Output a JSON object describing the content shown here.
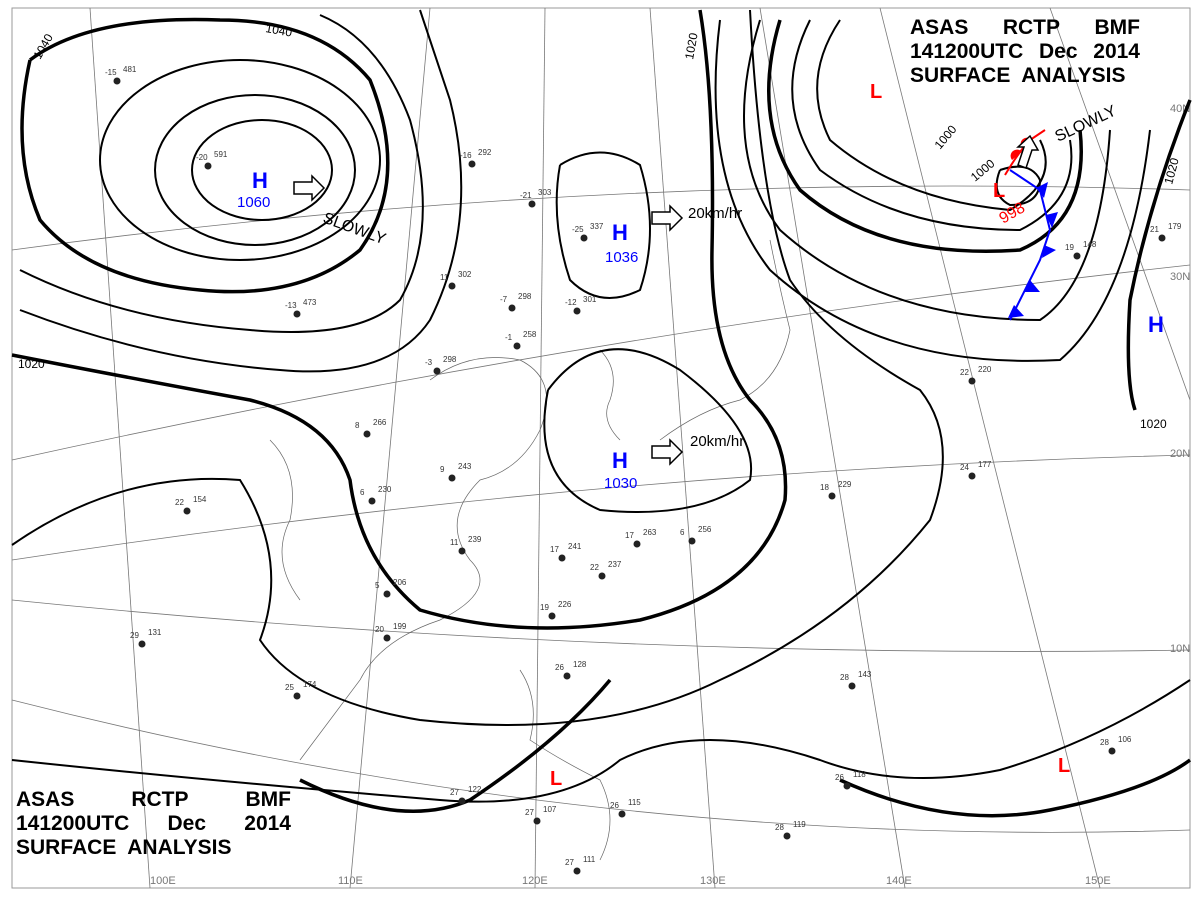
{
  "header": {
    "line1": [
      "ASAS",
      "RCTP",
      "BMF"
    ],
    "line2": [
      "141200UTC",
      "Dec",
      "2014"
    ],
    "line3": "SURFACE  ANALYSIS"
  },
  "colors": {
    "high": "#0000ff",
    "low": "#ff0000",
    "isobar": "#000000",
    "cold_front": "#0000ff",
    "warm_front": "#ff0000"
  },
  "pressure_systems": [
    {
      "type": "H",
      "value": "1060",
      "motion": "SLOWLY"
    },
    {
      "type": "H",
      "value": "1036",
      "motion": "20km/hr"
    },
    {
      "type": "H",
      "value": "1030",
      "motion": "20km/hr"
    },
    {
      "type": "L",
      "value": "998",
      "motion": "SLOWLY"
    },
    {
      "type": "L",
      "value": ""
    },
    {
      "type": "L",
      "value": ""
    },
    {
      "type": "L",
      "value": ""
    },
    {
      "type": "H",
      "value": ""
    }
  ],
  "isobar_labels": [
    "1040",
    "1040",
    "1020",
    "1020",
    "1020",
    "1000",
    "1000",
    "1020"
  ],
  "graticule": {
    "lon": [
      "100E",
      "110E",
      "120E",
      "130E",
      "140E",
      "150E"
    ],
    "lat": [
      "10N",
      "20N",
      "30N",
      "40N"
    ]
  },
  "stations": [
    {
      "t": "-20",
      "p": "591"
    },
    {
      "t": "-15",
      "p": "481"
    },
    {
      "t": "-21",
      "p": "303"
    },
    {
      "t": "-25",
      "p": "337"
    },
    {
      "t": "-12",
      "p": "301"
    },
    {
      "t": "-7",
      "p": "298"
    },
    {
      "t": "-13",
      "p": "473"
    },
    {
      "t": "-16",
      "p": "292"
    },
    {
      "t": "11",
      "p": "302"
    },
    {
      "t": "-3",
      "p": "298"
    },
    {
      "t": "-1",
      "p": "258"
    },
    {
      "t": "8",
      "p": "266"
    },
    {
      "t": "9",
      "p": "243"
    },
    {
      "t": "6",
      "p": "230"
    },
    {
      "t": "22",
      "p": "154"
    },
    {
      "t": "11",
      "p": "239"
    },
    {
      "t": "17",
      "p": "241"
    },
    {
      "t": "17",
      "p": "263"
    },
    {
      "t": "6",
      "p": "256"
    },
    {
      "t": "5",
      "p": "206"
    },
    {
      "t": "20",
      "p": "199"
    },
    {
      "t": "29",
      "p": "131"
    },
    {
      "t": "25",
      "p": "174"
    },
    {
      "t": "26",
      "p": "128"
    },
    {
      "t": "27",
      "p": "122"
    },
    {
      "t": "27",
      "p": "107"
    },
    {
      "t": "27",
      "p": "111"
    },
    {
      "t": "28",
      "p": "119"
    },
    {
      "t": "28",
      "p": "143"
    },
    {
      "t": "26",
      "p": "118"
    },
    {
      "t": "28",
      "p": "106"
    },
    {
      "t": "18",
      "p": "229"
    },
    {
      "t": "24",
      "p": "177"
    },
    {
      "t": "22",
      "p": "220"
    },
    {
      "t": "19",
      "p": "148"
    },
    {
      "t": "21",
      "p": "179"
    },
    {
      "t": "19",
      "p": "226"
    },
    {
      "t": "22",
      "p": "237"
    },
    {
      "t": "26",
      "p": "115"
    }
  ]
}
